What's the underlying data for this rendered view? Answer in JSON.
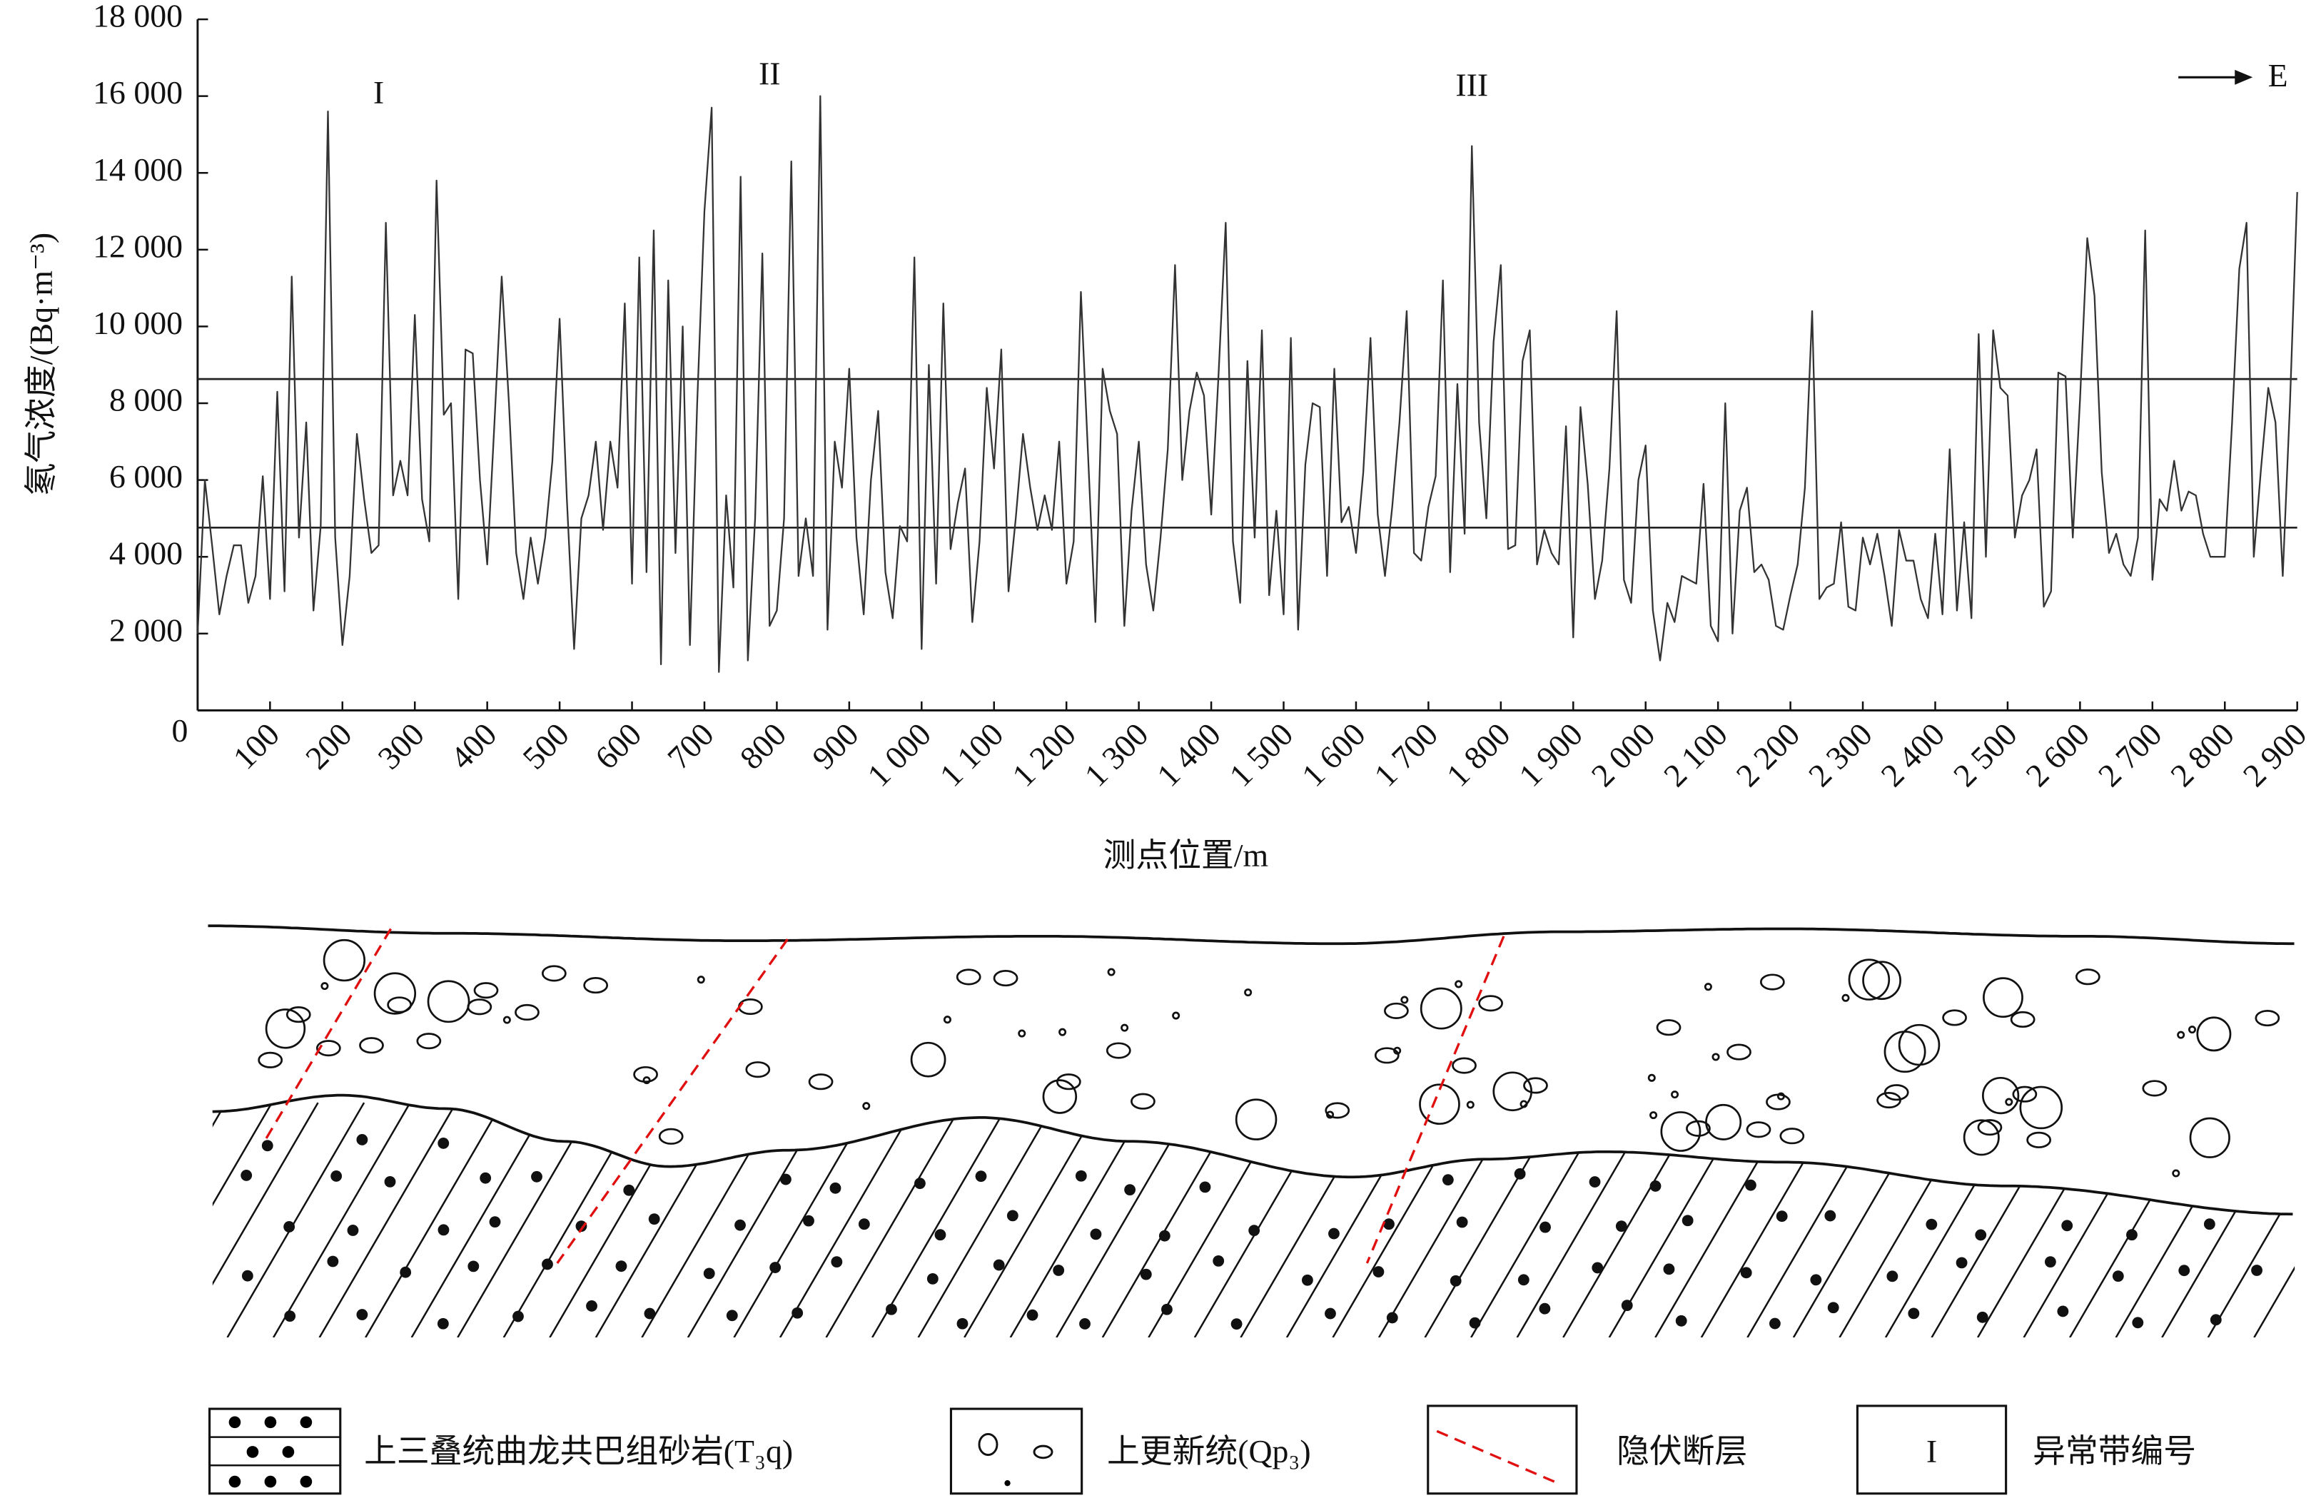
{
  "chart_data": {
    "type": "line",
    "ylabel": "氡气浓度/(Bq·m⁻³)",
    "xlabel": "测点位置/m",
    "color": "#333333",
    "annotations": [
      {
        "text": "I",
        "x": 250,
        "y": 16000
      },
      {
        "text": "II",
        "x": 790,
        "y": 16500
      },
      {
        "text": "III",
        "x": 1760,
        "y": 16200
      }
    ],
    "direction": "E",
    "hlines": [
      8630,
      4760
    ],
    "xlim": [
      0,
      2900
    ],
    "ylim": [
      0,
      18000
    ],
    "yticks": [
      0,
      {
        "value": 2000,
        "label": "2 000"
      },
      {
        "value": 4000,
        "label": "4 000"
      },
      {
        "value": 6000,
        "label": "6 000"
      },
      {
        "value": 8000,
        "label": "8 000"
      },
      {
        "value": 10000,
        "label": "10 000"
      },
      {
        "value": 12000,
        "label": "12 000"
      },
      {
        "value": 14000,
        "label": "14 000"
      },
      {
        "value": 16000,
        "label": "16 000"
      },
      {
        "value": 18000,
        "label": "18 000"
      }
    ],
    "xticks": [
      0,
      100,
      200,
      300,
      400,
      500,
      600,
      700,
      800,
      900,
      {
        "value": 1000,
        "label": "1 000"
      },
      {
        "value": 1100,
        "label": "1 100"
      },
      {
        "value": 1200,
        "label": "1 200"
      },
      {
        "value": 1300,
        "label": "1 300"
      },
      {
        "value": 1400,
        "label": "1 400"
      },
      {
        "value": 1500,
        "label": "1 500"
      },
      {
        "value": 1600,
        "label": "1 600"
      },
      {
        "value": 1700,
        "label": "1 700"
      },
      {
        "value": 1800,
        "label": "1 800"
      },
      {
        "value": 1900,
        "label": "1 900"
      },
      {
        "value": 2000,
        "label": "2 000"
      },
      {
        "value": 2100,
        "label": "2 100"
      },
      {
        "value": 2200,
        "label": "2 200"
      },
      {
        "value": 2300,
        "label": "2 300"
      },
      {
        "value": 2400,
        "label": "2 400"
      },
      {
        "value": 2500,
        "label": "2 500"
      },
      {
        "value": 2600,
        "label": "2 600"
      },
      {
        "value": 2700,
        "label": "2 700"
      },
      {
        "value": 2800,
        "label": "2 800"
      },
      {
        "value": 2900,
        "label": "2 900"
      }
    ],
    "x": [
      0,
      10,
      20,
      30,
      40,
      50,
      60,
      70,
      80,
      90,
      100,
      110,
      120,
      130,
      140,
      150,
      160,
      170,
      180,
      190,
      200,
      210,
      220,
      230,
      240,
      250,
      260,
      270,
      280,
      290,
      300,
      310,
      320,
      330,
      340,
      350,
      360,
      370,
      380,
      390,
      400,
      410,
      420,
      430,
      440,
      450,
      460,
      470,
      480,
      490,
      500,
      510,
      520,
      530,
      540,
      550,
      560,
      570,
      580,
      590,
      600,
      610,
      620,
      630,
      640,
      650,
      660,
      670,
      680,
      690,
      700,
      710,
      720,
      730,
      740,
      750,
      760,
      770,
      780,
      790,
      800,
      810,
      820,
      830,
      840,
      850,
      860,
      870,
      880,
      890,
      900,
      910,
      920,
      930,
      940,
      950,
      960,
      970,
      980,
      990,
      1000,
      1010,
      1020,
      1030,
      1040,
      1050,
      1060,
      1070,
      1080,
      1090,
      1100,
      1110,
      1120,
      1130,
      1140,
      1150,
      1160,
      1170,
      1180,
      1190,
      1200,
      1210,
      1220,
      1230,
      1240,
      1250,
      1260,
      1270,
      1280,
      1290,
      1300,
      1310,
      1320,
      1330,
      1340,
      1350,
      1360,
      1370,
      1380,
      1390,
      1400,
      1410,
      1420,
      1430,
      1440,
      1450,
      1460,
      1470,
      1480,
      1490,
      1500,
      1510,
      1520,
      1530,
      1540,
      1550,
      1560,
      1570,
      1580,
      1590,
      1600,
      1610,
      1620,
      1630,
      1640,
      1650,
      1660,
      1670,
      1680,
      1690,
      1700,
      1710,
      1720,
      1730,
      1740,
      1750,
      1760,
      1770,
      1780,
      1790,
      1800,
      1810,
      1820,
      1830,
      1840,
      1850,
      1860,
      1870,
      1880,
      1890,
      1900,
      1910,
      1920,
      1930,
      1940,
      1950,
      1960,
      1970,
      1980,
      1990,
      2000,
      2010,
      2020,
      2030,
      2040,
      2050,
      2060,
      2070,
      2080,
      2090,
      2100,
      2110,
      2120,
      2130,
      2140,
      2150,
      2160,
      2170,
      2180,
      2190,
      2200,
      2210,
      2220,
      2230,
      2240,
      2250,
      2260,
      2270,
      2280,
      2290,
      2300,
      2310,
      2320,
      2330,
      2340,
      2350,
      2360,
      2370,
      2380,
      2390,
      2400,
      2410,
      2420,
      2430,
      2440,
      2450,
      2460,
      2470,
      2480,
      2490,
      2500,
      2510,
      2520,
      2530,
      2540,
      2550,
      2560,
      2570,
      2580,
      2590,
      2600,
      2610,
      2620,
      2630,
      2640,
      2650,
      2660,
      2670,
      2680,
      2690,
      2700,
      2710,
      2720,
      2730,
      2740,
      2750,
      2760,
      2770,
      2780,
      2790,
      2800,
      2810,
      2820,
      2830,
      2840,
      2850,
      2860,
      2870,
      2880,
      2890,
      2900
    ],
    "values": [
      2000,
      6000,
      4300,
      2500,
      3500,
      4300,
      4300,
      2800,
      3500,
      6100,
      2900,
      8300,
      3100,
      11300,
      4500,
      7500,
      2600,
      4800,
      15600,
      4500,
      1700,
      3500,
      7200,
      5500,
      4100,
      4300,
      12700,
      5600,
      6500,
      5600,
      10300,
      5500,
      4400,
      13800,
      7700,
      8000,
      2900,
      9400,
      9300,
      6000,
      3800,
      7500,
      11300,
      8000,
      4100,
      2900,
      4500,
      3300,
      4500,
      6500,
      10200,
      5500,
      1600,
      5000,
      5600,
      7000,
      4700,
      7000,
      5800,
      10600,
      3300,
      11800,
      3600,
      12500,
      1200,
      11200,
      4100,
      10000,
      1700,
      8000,
      13000,
      15700,
      1000,
      5600,
      3200,
      13900,
      1300,
      5000,
      11900,
      2200,
      2600,
      5000,
      14300,
      3500,
      5000,
      3500,
      16000,
      2100,
      7000,
      5800,
      8900,
      4500,
      2500,
      6000,
      7800,
      3600,
      2400,
      4800,
      4400,
      11800,
      1600,
      9000,
      3300,
      10600,
      4200,
      5400,
      6300,
      2300,
      4400,
      8400,
      6300,
      9400,
      3100,
      5000,
      7200,
      5800,
      4700,
      5600,
      4700,
      7000,
      3300,
      4400,
      10900,
      6600,
      2300,
      8900,
      7800,
      7200,
      2200,
      5200,
      7000,
      3800,
      2600,
      4500,
      6800,
      11600,
      6000,
      7800,
      8800,
      8200,
      5100,
      8700,
      12700,
      4400,
      2800,
      9100,
      4500,
      9900,
      3000,
      5200,
      2500,
      9700,
      2100,
      6400,
      8000,
      7900,
      3500,
      8900,
      4900,
      5300,
      4100,
      6200,
      9700,
      5100,
      3500,
      5300,
      7500,
      10400,
      4100,
      3900,
      5300,
      6100,
      11200,
      3600,
      8500,
      4600,
      14700,
      7500,
      5000,
      9600,
      11600,
      4200,
      4300,
      9100,
      9900,
      3800,
      4700,
      4100,
      3800,
      7400,
      1900,
      7900,
      5900,
      2900,
      3900,
      6300,
      10400,
      3400,
      2800,
      6000,
      6900,
      2600,
      1300,
      2800,
      2300,
      3500,
      3400,
      3300,
      5900,
      2200,
      1800,
      8000,
      2000,
      5200,
      5800,
      3600,
      3800,
      3400,
      2200,
      2100,
      3000,
      3800,
      5800,
      10400,
      2900,
      3200,
      3300,
      4900,
      2700,
      2600,
      4500,
      3800,
      4600,
      3500,
      2200,
      4700,
      3900,
      3900,
      2900,
      2400,
      4600,
      2500,
      6800,
      2600,
      4900,
      2400,
      9800,
      4000,
      9900,
      8400,
      8200,
      4500,
      5600,
      6000,
      6800,
      2700,
      3100,
      8800,
      8700,
      4500,
      8100,
      12300,
      10800,
      6200,
      4100,
      4600,
      3800,
      3500,
      4500,
      12500,
      3400,
      5500,
      5200,
      6500,
      5200,
      5700,
      5600,
      4600,
      4000,
      4000,
      4000,
      7500,
      11500,
      12700,
      4000,
      6300,
      8400,
      7500,
      3500,
      8000,
      13500
    ]
  },
  "cross_section": {
    "legend": [
      {
        "label": "上三叠统曲龙共巴组砂岩(T₃q)"
      },
      {
        "label": "上更新统(Qp₃)"
      },
      {
        "label": "隐伏断层"
      },
      {
        "symbol": "I",
        "label": "异常带编号"
      }
    ]
  }
}
